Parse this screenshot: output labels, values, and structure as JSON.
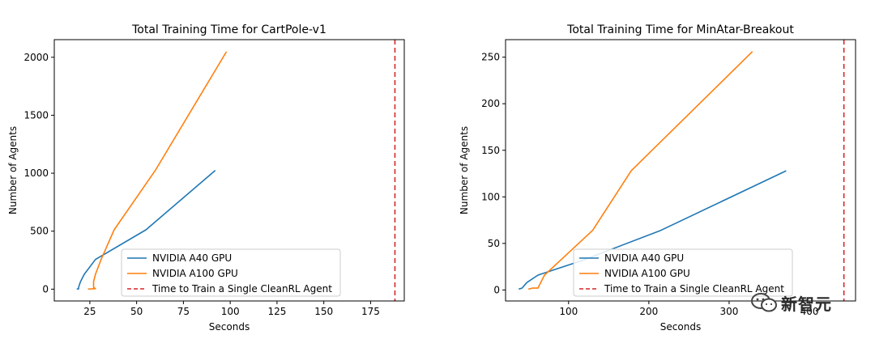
{
  "chart_data": [
    {
      "type": "line",
      "title": "Total Training Time for CartPole-v1",
      "xlabel": "Seconds",
      "ylabel": "Number of Agents",
      "xlim": [
        6,
        193
      ],
      "ylim": [
        -102,
        2152
      ],
      "xticks": [
        25,
        50,
        75,
        100,
        125,
        150,
        175
      ],
      "yticks": [
        0,
        500,
        1000,
        1500,
        2000
      ],
      "legend_position": "lower center",
      "reference_line": {
        "name": "Time to Train a Single CleanRL Agent",
        "x": 188,
        "color": "#d62728",
        "style": "dashed"
      },
      "series": [
        {
          "name": "NVIDIA A40 GPU",
          "color": "#1f77b4",
          "x": [
            18,
            19,
            19,
            20,
            22,
            28,
            55,
            92
          ],
          "y": [
            1,
            2,
            16,
            64,
            128,
            256,
            512,
            1024
          ]
        },
        {
          "name": "NVIDIA A100 GPU",
          "color": "#ff7f0e",
          "x": [
            24,
            26,
            28,
            27,
            27,
            28,
            31,
            38,
            60,
            98
          ],
          "y": [
            1,
            2,
            4,
            16,
            64,
            128,
            256,
            512,
            1024,
            2048
          ]
        }
      ]
    },
    {
      "type": "line",
      "title": "Total Training Time for MinAtar-Breakout",
      "xlabel": "Seconds",
      "ylabel": "Number of Agents",
      "xlim": [
        21.5,
        457.5
      ],
      "ylim": [
        -11.8,
        268.8
      ],
      "xticks": [
        100,
        200,
        300,
        400
      ],
      "yticks": [
        0,
        50,
        100,
        150,
        200,
        250
      ],
      "legend_position": "lower center",
      "reference_line": {
        "name": "Time to Train a Single CleanRL Agent",
        "x": 443,
        "color": "#d62728",
        "style": "dashed"
      },
      "series": [
        {
          "name": "NVIDIA A40 GPU",
          "color": "#1f77b4",
          "x": [
            38,
            42,
            48,
            62,
            118,
            215,
            371
          ],
          "y": [
            1,
            2,
            8,
            16,
            32,
            64,
            128
          ]
        },
        {
          "name": "NVIDIA A100 GPU",
          "color": "#ff7f0e",
          "x": [
            50,
            55,
            62,
            63,
            70,
            90,
            130,
            178,
            329
          ],
          "y": [
            1,
            2,
            2,
            4,
            16,
            32,
            64,
            128,
            256
          ]
        }
      ]
    }
  ],
  "watermark": {
    "text": "新智元"
  }
}
